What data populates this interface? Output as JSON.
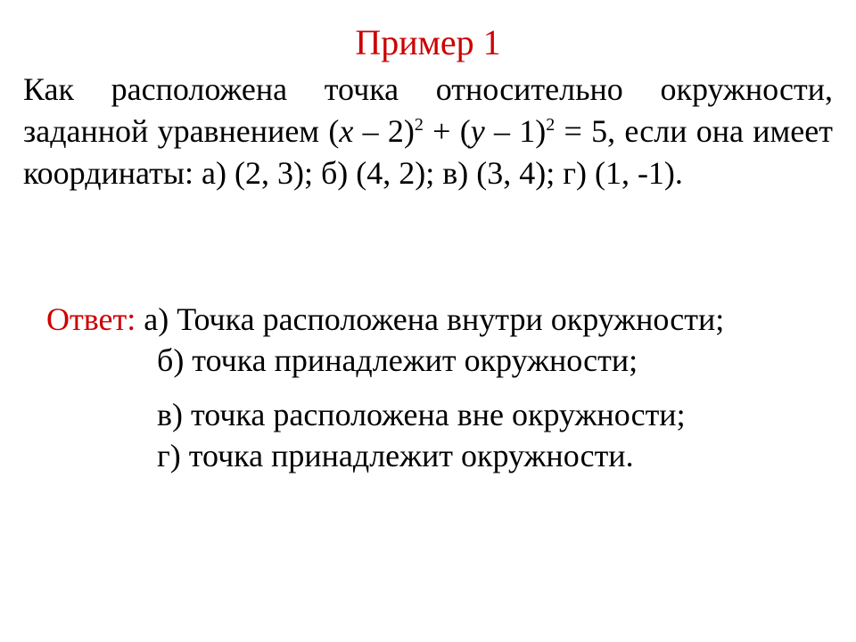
{
  "colors": {
    "accent": "#cc0000",
    "text": "#000000",
    "background": "#ffffff"
  },
  "typography": {
    "family": "Times New Roman",
    "title_size_pt": 30,
    "body_size_pt": 27
  },
  "title": "Пример 1",
  "problem": {
    "prefix": "Как расположена точка относительно окружности, заданной уравнением (",
    "var_x": "x",
    "mid1": " – 2)",
    "sup1": "2",
    "mid2": " + (",
    "var_y": "y",
    "mid3": " – 1)",
    "sup2": "2",
    "tail": " = 5, если она имеет координаты: а) (2, 3); б) (4, 2); в) (3, 4); г) (1, -1)."
  },
  "answer": {
    "label": "Ответ:",
    "a": "а) Точка расположена внутри окружности;",
    "b": "б) точка принадлежит окружности;",
    "v": "в) точка расположена вне окружности;",
    "g": "г) точка принадлежит окружности."
  }
}
